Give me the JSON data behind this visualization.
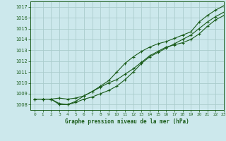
{
  "title": "Graphe pression niveau de la mer (hPa)",
  "bg_color": "#cce8ec",
  "grid_color": "#aacccc",
  "line_color": "#1a5c1a",
  "xlim": [
    -0.5,
    23
  ],
  "ylim": [
    1007.5,
    1017.5
  ],
  "yticks": [
    1008,
    1009,
    1010,
    1011,
    1012,
    1013,
    1014,
    1015,
    1016,
    1017
  ],
  "xticks": [
    0,
    1,
    2,
    3,
    4,
    5,
    6,
    7,
    8,
    9,
    10,
    11,
    12,
    13,
    14,
    15,
    16,
    17,
    18,
    19,
    20,
    21,
    22,
    23
  ],
  "series1_x": [
    0,
    1,
    2,
    3,
    4,
    5,
    6,
    7,
    8,
    9,
    10,
    11,
    12,
    13,
    14,
    15,
    16,
    17,
    18,
    19,
    20,
    21,
    22,
    23
  ],
  "series1": [
    1008.5,
    1008.5,
    1008.5,
    1008.6,
    1008.5,
    1008.6,
    1008.8,
    1009.2,
    1009.7,
    1010.2,
    1011.0,
    1011.8,
    1012.4,
    1012.9,
    1013.3,
    1013.6,
    1013.8,
    1014.1,
    1014.4,
    1014.7,
    1015.6,
    1016.2,
    1016.7,
    1017.1
  ],
  "series2_x": [
    0,
    1,
    2,
    3,
    4,
    5,
    6,
    7,
    8,
    9,
    10,
    11,
    12,
    13,
    14,
    15,
    16,
    17,
    18,
    19,
    20,
    21,
    22,
    23
  ],
  "series2": [
    1008.5,
    1008.5,
    1008.5,
    1008.0,
    1008.0,
    1008.2,
    1008.5,
    1008.7,
    1009.0,
    1009.3,
    1009.7,
    1010.3,
    1011.0,
    1011.8,
    1012.4,
    1012.8,
    1013.2,
    1013.6,
    1014.0,
    1014.4,
    1015.0,
    1015.6,
    1016.1,
    1016.5
  ],
  "series3_x": [
    0,
    1,
    2,
    3,
    4,
    5,
    6,
    7,
    8,
    9,
    10,
    11,
    12,
    13,
    14,
    15,
    16,
    17,
    18,
    19,
    20,
    21,
    22,
    23
  ],
  "series3": [
    1008.5,
    1008.5,
    1008.5,
    1008.1,
    1008.0,
    1008.3,
    1008.8,
    1009.2,
    1009.6,
    1010.0,
    1010.3,
    1010.8,
    1011.3,
    1011.9,
    1012.5,
    1012.9,
    1013.3,
    1013.5,
    1013.7,
    1014.0,
    1014.5,
    1015.2,
    1015.8,
    1016.2
  ]
}
